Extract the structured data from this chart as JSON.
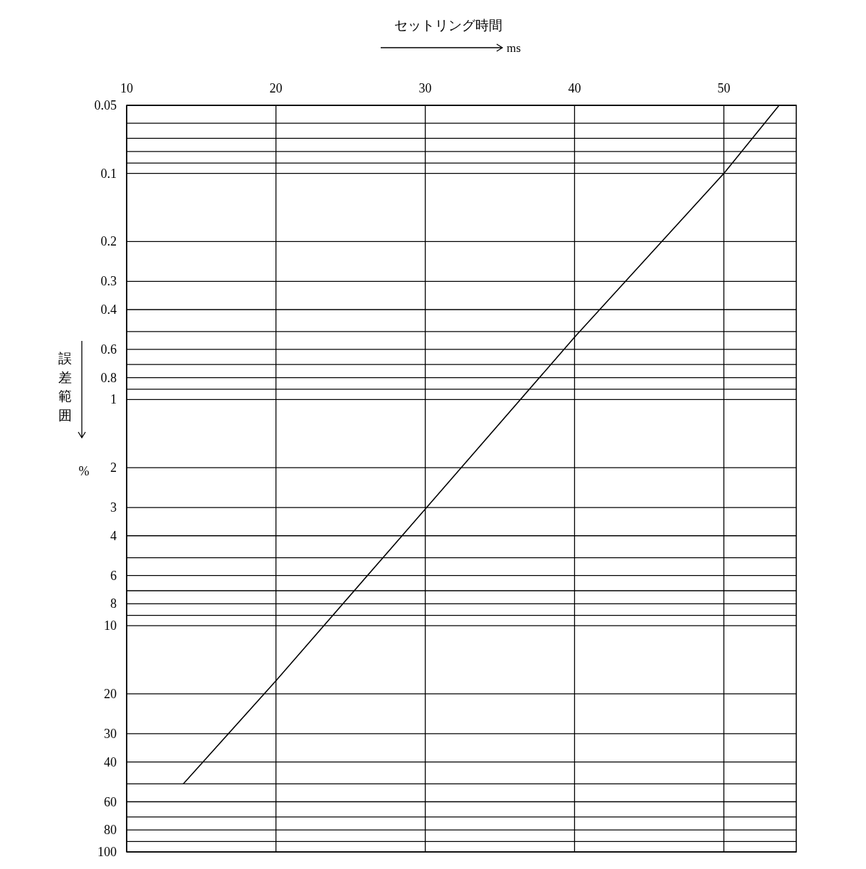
{
  "chart_data": {
    "type": "line",
    "xlabel": "セットリング時間",
    "ylabel": "誤差範囲",
    "annotations": [
      "ms",
      "%"
    ],
    "x": [
      13.8,
      20,
      30,
      40,
      50,
      53.7
    ],
    "series": [
      {
        "color": "#000000",
        "values": [
          50,
          17.5,
          3.05,
          0.53,
          0.1,
          0.05
        ]
      }
    ],
    "xlim": [
      10,
      54.85
    ],
    "xticks": [
      10,
      20,
      30,
      40,
      50
    ],
    "ylim": [
      100,
      0.05
    ],
    "log": "y",
    "grid": true,
    "yticks": [
      0.05,
      {
        "value": 0.06,
        "label": null
      },
      {
        "value": 0.07,
        "label": null
      },
      {
        "value": 0.08,
        "label": null
      },
      {
        "value": 0.09,
        "label": null
      },
      0.1,
      0.2,
      0.3,
      0.4,
      {
        "value": 0.5,
        "label": null
      },
      0.6,
      {
        "value": 0.7,
        "label": null
      },
      0.8,
      {
        "value": 0.9,
        "label": null
      },
      1,
      2,
      3,
      4,
      {
        "value": 5,
        "label": null
      },
      6,
      {
        "value": 7,
        "label": null
      },
      8,
      {
        "value": 9,
        "label": null
      },
      10,
      20,
      30,
      40,
      {
        "value": 50,
        "label": null
      },
      60,
      {
        "value": 70,
        "label": null
      },
      80,
      {
        "value": 90,
        "label": null
      },
      100
    ]
  }
}
